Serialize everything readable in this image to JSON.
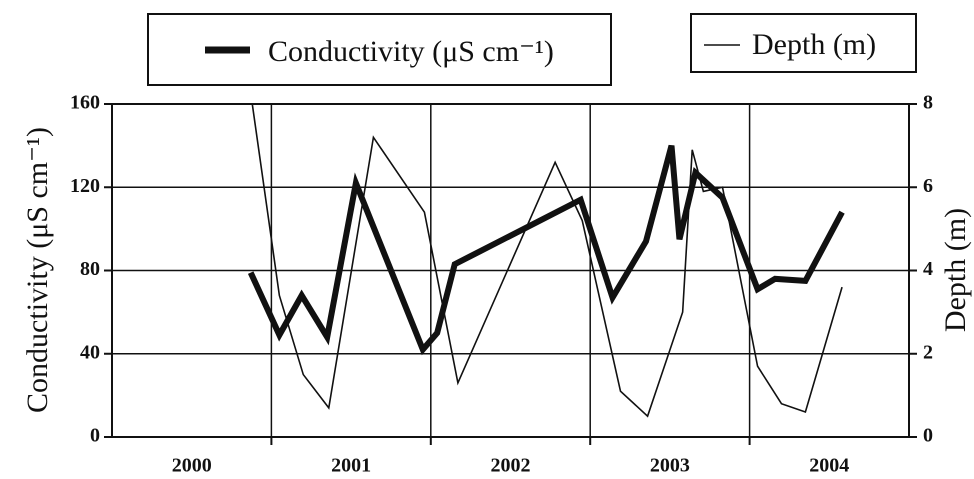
{
  "chart_data": {
    "type": "line",
    "x_label_ticks": [
      {
        "value": 2000.5,
        "label": "2000"
      },
      {
        "value": 2001.5,
        "label": "2001"
      },
      {
        "value": 2002.5,
        "label": "2002"
      },
      {
        "value": 2003.5,
        "label": "2003"
      },
      {
        "value": 2004.5,
        "label": "2004"
      }
    ],
    "xlim": [
      2000,
      2005
    ],
    "xgrid": [
      2001,
      2002,
      2003,
      2004
    ],
    "ylabel": "Conductivity (μS cm⁻¹)",
    "y2label": "Depth (m)",
    "ylim": [
      0,
      160
    ],
    "yticks": [
      0,
      40,
      80,
      120,
      160
    ],
    "y2lim": [
      0,
      8
    ],
    "y2ticks": [
      0,
      2,
      4,
      6,
      8
    ],
    "grid": true,
    "series": [
      {
        "name": "Conductivity (μS cm⁻¹)",
        "color": "#111111",
        "width": 6,
        "x": [
          2000.87,
          2001.05,
          2001.19,
          2001.35,
          2001.53,
          2001.95,
          2002.04,
          2002.15,
          2002.94,
          2003.14,
          2003.35,
          2003.51,
          2003.56,
          2003.66,
          2003.83,
          2004.05,
          2004.16,
          2004.35,
          2004.58
        ],
        "values": [
          79,
          49,
          68,
          48,
          122,
          42,
          50,
          83,
          114,
          67,
          94,
          140,
          95,
          127,
          115,
          71,
          76,
          75,
          108
        ]
      },
      {
        "name": "Depth (m)",
        "color": "#111111",
        "width": 1.6,
        "axis": "y2",
        "x": [
          2000.88,
          2001.05,
          2001.2,
          2001.36,
          2001.64,
          2001.96,
          2002.17,
          2002.78,
          2002.95,
          2003.19,
          2003.36,
          2003.58,
          2003.64,
          2003.71,
          2003.83,
          2004.05,
          2004.2,
          2004.35,
          2004.58
        ],
        "values": [
          8,
          3.4,
          1.5,
          0.7,
          7.2,
          5.4,
          1.3,
          6.6,
          5.2,
          1.1,
          0.5,
          3.0,
          6.9,
          5.9,
          6.0,
          1.7,
          0.8,
          0.6,
          3.6
        ]
      }
    ]
  }
}
